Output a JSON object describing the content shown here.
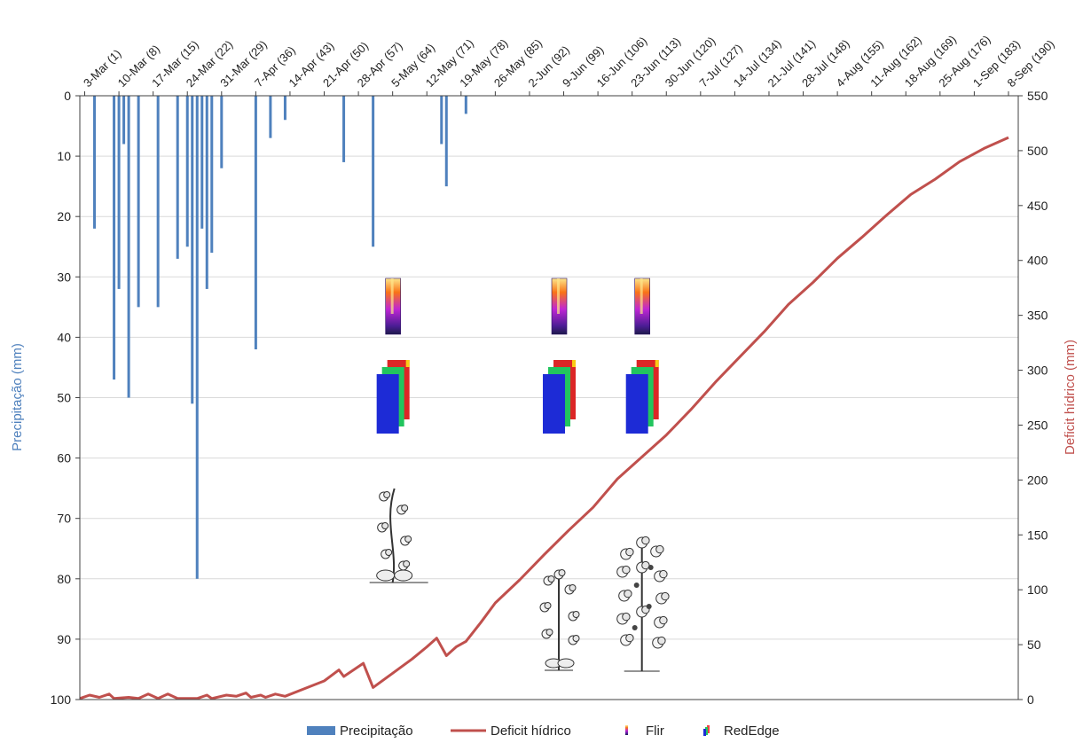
{
  "chart_data": {
    "type": "bar+line",
    "colors": {
      "precip": "#4f81bd",
      "deficit": "#c0504d",
      "grid": "#d9d9d9",
      "axis": "#404040",
      "left_label": "#4f81bd",
      "right_label": "#c0504d"
    },
    "x_ticks": [
      {
        "day": 1,
        "label": "3-Mar (1)"
      },
      {
        "day": 8,
        "label": "10-Mar (8)"
      },
      {
        "day": 15,
        "label": "17-Mar (15)"
      },
      {
        "day": 22,
        "label": "24-Mar (22)"
      },
      {
        "day": 29,
        "label": "31-Mar (29)"
      },
      {
        "day": 36,
        "label": "7-Apr (36)"
      },
      {
        "day": 43,
        "label": "14-Apr (43)"
      },
      {
        "day": 50,
        "label": "21-Apr (50)"
      },
      {
        "day": 57,
        "label": "28-Apr (57)"
      },
      {
        "day": 64,
        "label": "5-May (64)"
      },
      {
        "day": 71,
        "label": "12-May (71)"
      },
      {
        "day": 78,
        "label": "19-May (78)"
      },
      {
        "day": 85,
        "label": "26-May (85)"
      },
      {
        "day": 92,
        "label": "2-Jun (92)"
      },
      {
        "day": 99,
        "label": "9-Jun (99)"
      },
      {
        "day": 106,
        "label": "16-Jun (106)"
      },
      {
        "day": 113,
        "label": "23-Jun (113)"
      },
      {
        "day": 120,
        "label": "30-Jun (120)"
      },
      {
        "day": 127,
        "label": "7-Jul (127)"
      },
      {
        "day": 134,
        "label": "14-Jul (134)"
      },
      {
        "day": 141,
        "label": "21-Jul (141)"
      },
      {
        "day": 148,
        "label": "28-Jul (148)"
      },
      {
        "day": 155,
        "label": "4-Aug (155)"
      },
      {
        "day": 162,
        "label": "11-Aug (162)"
      },
      {
        "day": 169,
        "label": "18-Aug (169)"
      },
      {
        "day": 176,
        "label": "25-Aug (176)"
      },
      {
        "day": 183,
        "label": "1-Sep (183)"
      },
      {
        "day": 190,
        "label": "8-Sep (190)"
      }
    ],
    "x_range": [
      0,
      192
    ],
    "left_axis": {
      "label": "Precipitação (mm)",
      "ylim": [
        0,
        100
      ],
      "inverted": true,
      "ticks": [
        "0",
        "10",
        "20",
        "30",
        "40",
        "50",
        "60",
        "70",
        "80",
        "90",
        "100"
      ]
    },
    "right_axis": {
      "label": "Deficit hídrico (mm)",
      "ylim": [
        0,
        550
      ],
      "ticks": [
        "0",
        "50",
        "100",
        "150",
        "200",
        "250",
        "300",
        "350",
        "400",
        "450",
        "500",
        "550"
      ]
    },
    "grid": true,
    "legend_position": "bottom",
    "series": [
      {
        "name": "Precipitação",
        "type": "bar",
        "axis": "left",
        "points": [
          {
            "x": 3,
            "y": 22
          },
          {
            "x": 7,
            "y": 47
          },
          {
            "x": 8,
            "y": 32
          },
          {
            "x": 9,
            "y": 8
          },
          {
            "x": 10,
            "y": 50
          },
          {
            "x": 12,
            "y": 35
          },
          {
            "x": 16,
            "y": 35
          },
          {
            "x": 20,
            "y": 27
          },
          {
            "x": 22,
            "y": 25
          },
          {
            "x": 23,
            "y": 51
          },
          {
            "x": 24,
            "y": 80
          },
          {
            "x": 25,
            "y": 22
          },
          {
            "x": 26,
            "y": 32
          },
          {
            "x": 27,
            "y": 26
          },
          {
            "x": 29,
            "y": 12
          },
          {
            "x": 36,
            "y": 42
          },
          {
            "x": 39,
            "y": 7
          },
          {
            "x": 42,
            "y": 4
          },
          {
            "x": 54,
            "y": 11
          },
          {
            "x": 60,
            "y": 25
          },
          {
            "x": 74,
            "y": 8
          },
          {
            "x": 75,
            "y": 15
          },
          {
            "x": 79,
            "y": 3
          }
        ]
      },
      {
        "name": "Deficit hídrico",
        "type": "line",
        "axis": "right",
        "points": [
          {
            "x": 0,
            "y": 1
          },
          {
            "x": 2,
            "y": 4
          },
          {
            "x": 4,
            "y": 2
          },
          {
            "x": 6,
            "y": 5
          },
          {
            "x": 7,
            "y": 1
          },
          {
            "x": 10,
            "y": 2
          },
          {
            "x": 12,
            "y": 1
          },
          {
            "x": 14,
            "y": 5
          },
          {
            "x": 16,
            "y": 1
          },
          {
            "x": 18,
            "y": 5
          },
          {
            "x": 20,
            "y": 1
          },
          {
            "x": 24,
            "y": 1
          },
          {
            "x": 26,
            "y": 4
          },
          {
            "x": 27,
            "y": 1
          },
          {
            "x": 30,
            "y": 4
          },
          {
            "x": 32,
            "y": 3
          },
          {
            "x": 34,
            "y": 6
          },
          {
            "x": 35,
            "y": 2
          },
          {
            "x": 37,
            "y": 4
          },
          {
            "x": 38,
            "y": 2
          },
          {
            "x": 40,
            "y": 5
          },
          {
            "x": 42,
            "y": 3
          },
          {
            "x": 46,
            "y": 10
          },
          {
            "x": 50,
            "y": 17
          },
          {
            "x": 53,
            "y": 27
          },
          {
            "x": 54,
            "y": 21
          },
          {
            "x": 58,
            "y": 33
          },
          {
            "x": 60,
            "y": 11
          },
          {
            "x": 64,
            "y": 24
          },
          {
            "x": 68,
            "y": 37
          },
          {
            "x": 71,
            "y": 48
          },
          {
            "x": 73,
            "y": 56
          },
          {
            "x": 75,
            "y": 40
          },
          {
            "x": 77,
            "y": 48
          },
          {
            "x": 79,
            "y": 53
          },
          {
            "x": 82,
            "y": 70
          },
          {
            "x": 85,
            "y": 88
          },
          {
            "x": 90,
            "y": 109
          },
          {
            "x": 95,
            "y": 132
          },
          {
            "x": 100,
            "y": 154
          },
          {
            "x": 105,
            "y": 175
          },
          {
            "x": 110,
            "y": 201
          },
          {
            "x": 115,
            "y": 221
          },
          {
            "x": 120,
            "y": 241
          },
          {
            "x": 125,
            "y": 264
          },
          {
            "x": 130,
            "y": 289
          },
          {
            "x": 135,
            "y": 312
          },
          {
            "x": 140,
            "y": 335
          },
          {
            "x": 145,
            "y": 360
          },
          {
            "x": 150,
            "y": 380
          },
          {
            "x": 155,
            "y": 402
          },
          {
            "x": 160,
            "y": 421
          },
          {
            "x": 165,
            "y": 441
          },
          {
            "x": 170,
            "y": 460
          },
          {
            "x": 175,
            "y": 474
          },
          {
            "x": 180,
            "y": 490
          },
          {
            "x": 185,
            "y": 502
          },
          {
            "x": 190,
            "y": 512
          }
        ]
      }
    ],
    "legend": [
      {
        "key": "precip",
        "label": "Precipitação"
      },
      {
        "key": "deficit",
        "label": "Deficit hídrico"
      },
      {
        "key": "flir",
        "label": "Flir"
      },
      {
        "key": "rededge",
        "label": "RedEdge"
      }
    ],
    "markers": {
      "flir_days": [
        64,
        98,
        115
      ],
      "rededge_days": [
        64,
        98,
        115
      ],
      "plant_stages": [
        {
          "day": 64,
          "stage": "early"
        },
        {
          "day": 98,
          "stage": "mid"
        },
        {
          "day": 115,
          "stage": "late"
        }
      ]
    }
  }
}
